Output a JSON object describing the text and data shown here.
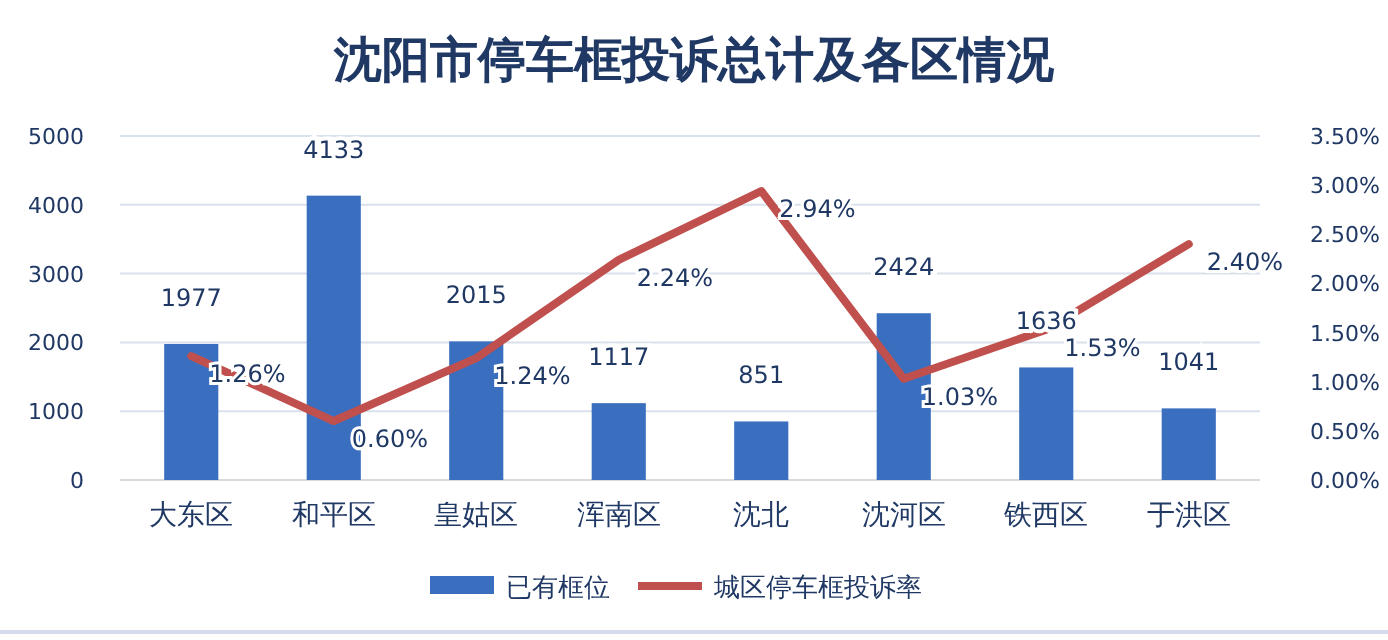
{
  "chart_data": {
    "type": "bar",
    "title": "沈阳市停车框投诉总计及各区情况",
    "categories": [
      "大东区",
      "和平区",
      "皇姑区",
      "浑南区",
      "沈北",
      "沈河区",
      "铁西区",
      "于洪区"
    ],
    "series": [
      {
        "name": "已有框位",
        "color": "#3a6fbf",
        "values": [
          1977,
          4133,
          2015,
          1117,
          851,
          2424,
          1636,
          1041
        ],
        "value_labels": [
          "1977",
          "4133",
          "2015",
          "1117",
          "851",
          "2424",
          "1636",
          "1041"
        ]
      },
      {
        "name": "城区停车框投诉率",
        "type": "line",
        "axis": "y2",
        "color": "#c0504d",
        "values": [
          1.26,
          0.6,
          1.24,
          2.24,
          2.94,
          1.03,
          1.53,
          2.4
        ],
        "value_labels": [
          "1.26%",
          "0.60%",
          "1.24%",
          "2.24%",
          "2.94%",
          "1.03%",
          "1.53%",
          "2.40%"
        ]
      }
    ],
    "ylim": [
      0,
      5000
    ],
    "yticks": [
      0,
      1000,
      2000,
      3000,
      4000,
      5000
    ],
    "y2lim": [
      0,
      3.5
    ],
    "y2ticks": [
      {
        "value": 0,
        "label": "0.00%"
      },
      {
        "value": 0.5,
        "label": "0.50%"
      },
      {
        "value": 1,
        "label": "1.00%"
      },
      {
        "value": 1.5,
        "label": "1.50%"
      },
      {
        "value": 2,
        "label": "2.00%"
      },
      {
        "value": 2.5,
        "label": "2.50%"
      },
      {
        "value": 3,
        "label": "3.00%"
      },
      {
        "value": 3.5,
        "label": "3.50%"
      }
    ],
    "grid": "y",
    "legend": "bottom",
    "marker": "none",
    "line_style": "solid"
  }
}
